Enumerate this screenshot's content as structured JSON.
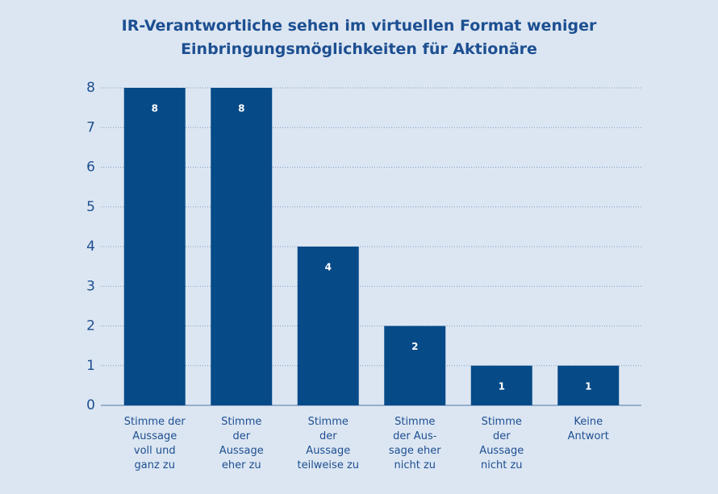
{
  "chart_data": {
    "type": "bar",
    "title": "IR-Verantwortliche sehen im virtuellen Format weniger Einbringungsmöglichkeiten für Aktionäre",
    "categories": [
      [
        "Stimme der",
        "Aussage",
        "voll und",
        "ganz zu"
      ],
      [
        "Stimme",
        "der",
        "Aussage",
        "eher zu"
      ],
      [
        "Stimme",
        "der",
        "Aussage",
        "teilweise zu"
      ],
      [
        "Stimme",
        "der Aus-",
        "sage eher",
        "nicht zu"
      ],
      [
        "Stimme",
        "der",
        "Aussage",
        "nicht zu"
      ],
      [
        "Keine",
        "Antwort"
      ]
    ],
    "values": [
      8,
      8,
      4,
      2,
      1,
      1
    ],
    "color": "#064a87",
    "ylim": [
      0,
      8
    ],
    "yticks": [
      0,
      1,
      2,
      3,
      4,
      5,
      6,
      7,
      8
    ],
    "grid": true
  }
}
